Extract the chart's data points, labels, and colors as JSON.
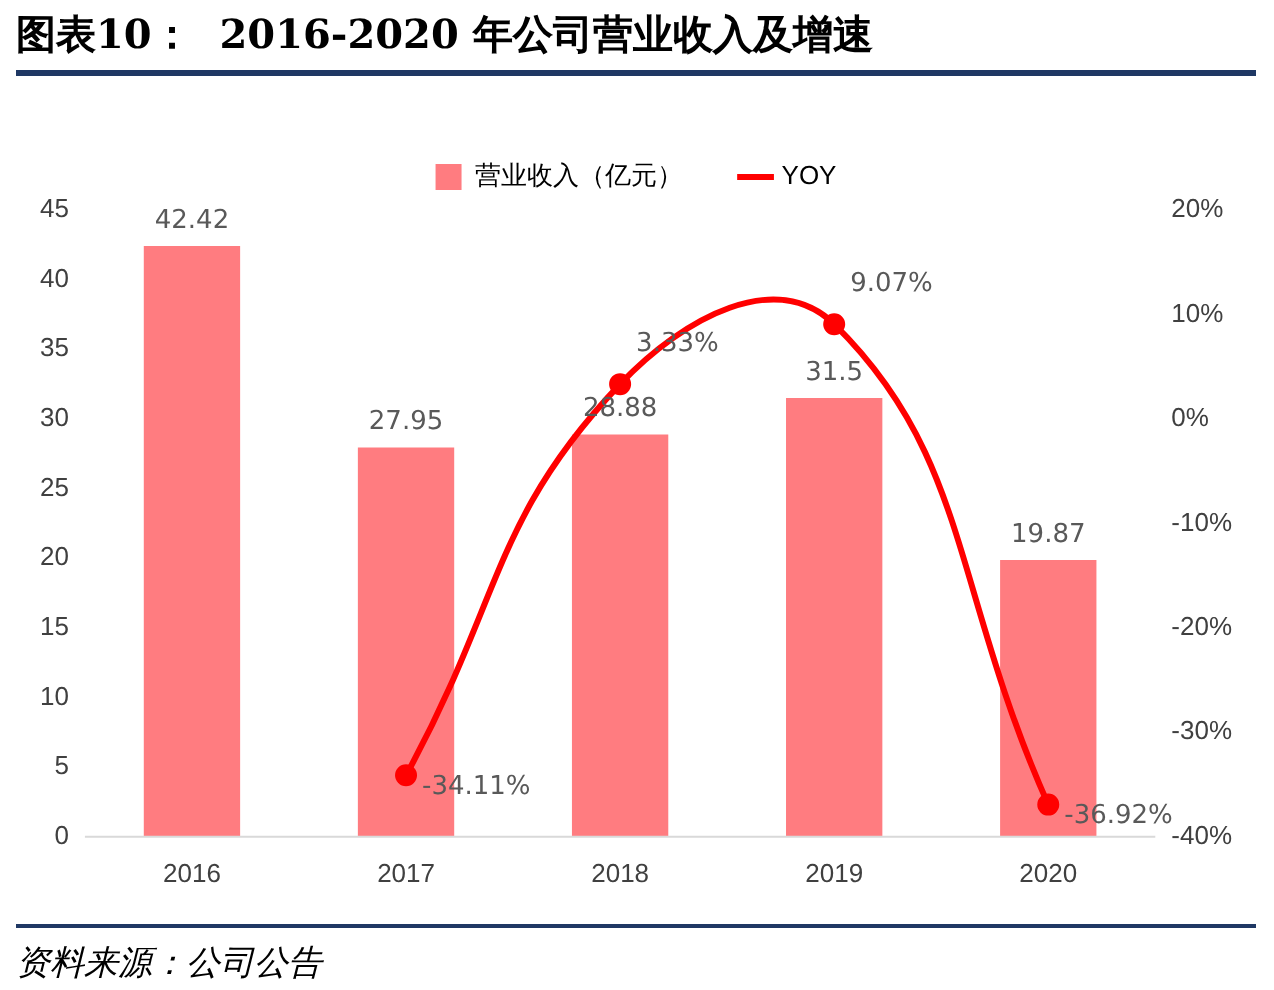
{
  "chart_data": {
    "type": "bar",
    "title": "图表10：  2016-2020 年公司营业收入及增速",
    "categories": [
      "2016",
      "2017",
      "2018",
      "2019",
      "2020"
    ],
    "series": [
      {
        "name": "营业收入（亿元）",
        "color": "#ff7c80",
        "values": [
          42.42,
          27.95,
          28.88,
          31.5,
          19.87
        ],
        "value_labels": [
          "42.42",
          "27.95",
          "28.88",
          "31.5",
          "19.87"
        ]
      },
      {
        "name": "YOY",
        "type": "line",
        "axis": "y2",
        "color": "#ff0000",
        "values": [
          null,
          -34.11,
          3.33,
          9.07,
          -36.92
        ],
        "value_labels": [
          null,
          "-34.11%",
          "3.33%",
          "9.07%",
          "-36.92%"
        ]
      }
    ],
    "ylim": [
      0,
      45
    ],
    "yticks": [
      0,
      5,
      10,
      15,
      20,
      25,
      30,
      35,
      40,
      45
    ],
    "y2lim": [
      -40,
      20
    ],
    "y2ticks": [
      {
        "value": -40,
        "label": "-40%"
      },
      {
        "value": -30,
        "label": "-30%"
      },
      {
        "value": -20,
        "label": "-20%"
      },
      {
        "value": -10,
        "label": "-10%"
      },
      {
        "value": 0,
        "label": "0%"
      },
      {
        "value": 10,
        "label": "10%"
      },
      {
        "value": 20,
        "label": "20%"
      }
    ],
    "grid": false,
    "legend": "top",
    "marker": "circle",
    "line_style": "solid",
    "annotations": [
      "资料来源：公司公告"
    ]
  }
}
